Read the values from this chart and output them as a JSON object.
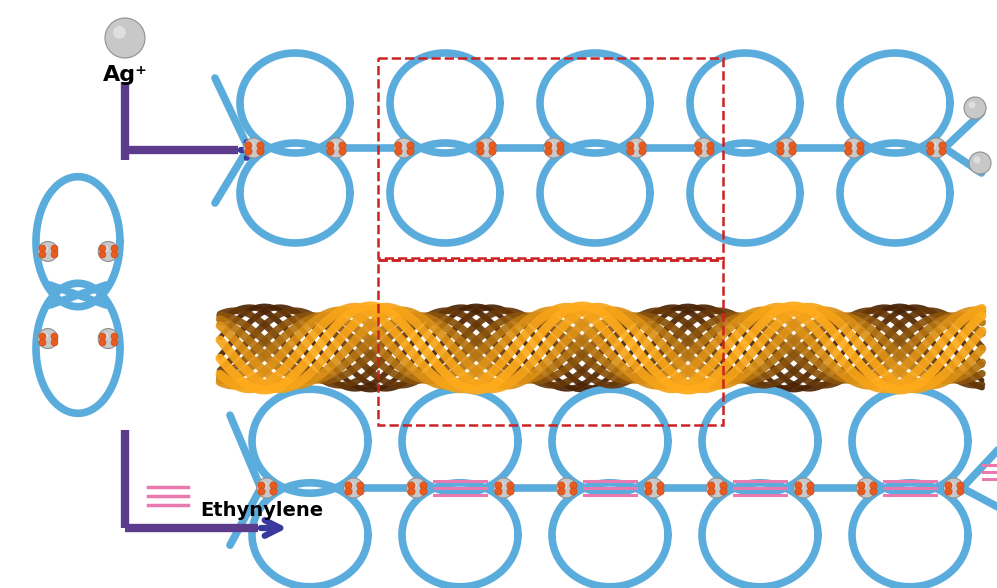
{
  "bg_color": "#ffffff",
  "blue_color": "#5aacdd",
  "purple_color": "#5c3b8c",
  "arrow_color": "#3a3a9c",
  "orange_color": "#e85c20",
  "silver_color": "#c8c8c8",
  "silver_edge": "#909090",
  "pink_color": "#e87ab0",
  "red_dashed_color": "#cc2222",
  "ag_label": "Ag⁺",
  "ethynylene_label": "Ethynylene",
  "figsize": [
    9.97,
    5.88
  ],
  "dpi": 100
}
